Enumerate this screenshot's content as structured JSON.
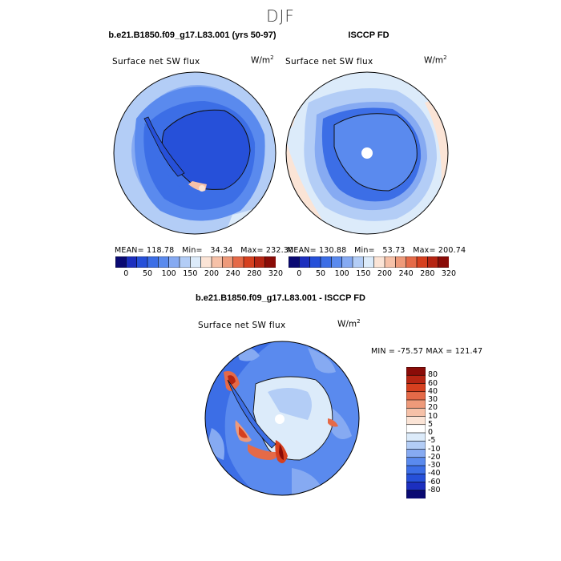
{
  "figure": {
    "season_title": "DJF",
    "panel1": {
      "title": "b.e21.B1850.f09_g17.L83.001 (yrs 50-97)",
      "variable": "Surface net SW flux",
      "units": "W/m",
      "units_exp": "2",
      "stats": "MEAN= 118.78   Min=   34.34   Max= 232.30"
    },
    "panel2": {
      "title": "ISCCP FD",
      "variable": "Surface net SW flux",
      "units": "W/m",
      "units_exp": "2",
      "stats": "MEAN= 130.88   Min=   53.73   Max= 200.74"
    },
    "panel3": {
      "title": "b.e21.B1850.f09_g17.L83.001 - ISCCP FD",
      "variable": "Surface net SW flux",
      "units": "W/m",
      "units_exp": "2",
      "stats": "MIN = -75.57 MAX = 121.47"
    },
    "colorbar_top": {
      "labels": [
        "0",
        "50",
        "100",
        "150",
        "200",
        "240",
        "280",
        "320"
      ],
      "colors": [
        "#0a0a73",
        "#1c2fbf",
        "#2650d9",
        "#3c6ee6",
        "#5a8aee",
        "#86aaf2",
        "#b3cdf6",
        "#dcebfa",
        "#fbe4d6",
        "#f6c1a8",
        "#ee9a7a",
        "#e56a48",
        "#d6401f",
        "#b62513",
        "#8a0c08"
      ]
    },
    "colorbar_diff": {
      "labels": [
        "80",
        "60",
        "40",
        "30",
        "20",
        "10",
        "5",
        "0",
        "-5",
        "-10",
        "-20",
        "-30",
        "-40",
        "-60",
        "-80"
      ],
      "colors": [
        "#8a0c08",
        "#b62513",
        "#d6401f",
        "#e56a48",
        "#ee9a7a",
        "#f6c1a8",
        "#fbe4d6",
        "#ffffff",
        "#dcebfa",
        "#b3cdf6",
        "#86aaf2",
        "#5a8aee",
        "#3c6ee6",
        "#2650d9",
        "#1c2fbf",
        "#0a0a73"
      ]
    }
  }
}
